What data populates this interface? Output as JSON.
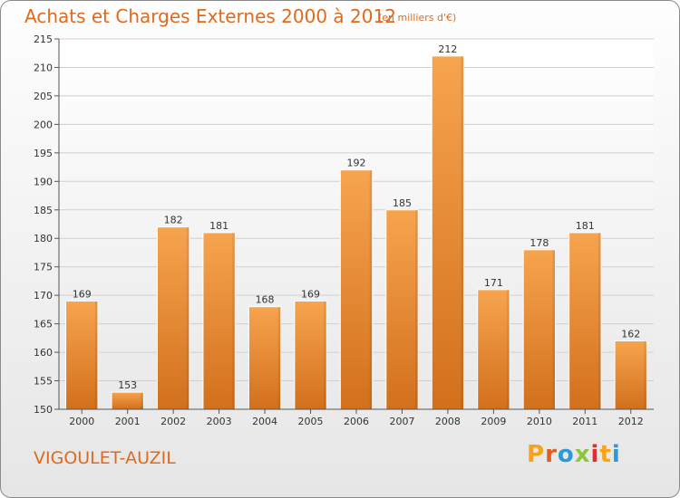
{
  "header": {
    "title": "Achats et Charges Externes 2000 à 2012",
    "subtitle": "(en milliers d'€)"
  },
  "footer": {
    "commune": "VIGOULET-AUZIL",
    "logo_text": [
      "P",
      "r",
      "o",
      "x",
      "i",
      "t",
      "i"
    ],
    "logo_colors": [
      "#f7a21b",
      "#e85a1e",
      "#2b9ad7",
      "#8cc63f",
      "#e42d2d",
      "#f4a41d",
      "#2b9ad7"
    ]
  },
  "chart_data": {
    "type": "bar",
    "title": "Achats et Charges Externes 2000 à 2012",
    "subtitle": "(en milliers d'€)",
    "categories": [
      "2000",
      "2001",
      "2002",
      "2003",
      "2004",
      "2005",
      "2006",
      "2007",
      "2008",
      "2009",
      "2010",
      "2011",
      "2012"
    ],
    "values": [
      169,
      153,
      182,
      181,
      168,
      169,
      192,
      185,
      212,
      171,
      178,
      181,
      162
    ],
    "ylim": [
      150,
      215
    ],
    "yticks": [
      150,
      155,
      160,
      165,
      170,
      175,
      180,
      185,
      190,
      195,
      200,
      205,
      210,
      215
    ],
    "grid": true,
    "bar_color_top": "#f7a44f",
    "bar_color_bottom": "#d2701c"
  }
}
